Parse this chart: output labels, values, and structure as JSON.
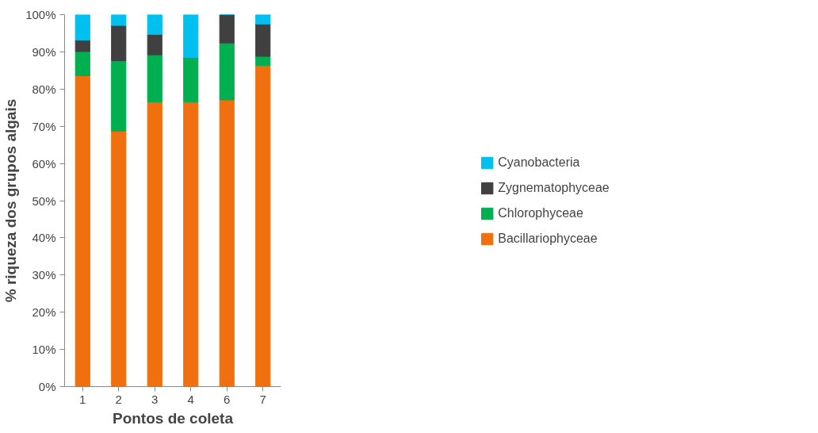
{
  "chart_data": {
    "type": "bar",
    "stacked": true,
    "xlabel": "Pontos de coleta",
    "ylabel": "% riqueza dos grupos algais",
    "categories": [
      "1",
      "2",
      "3",
      "4",
      "6",
      "7"
    ],
    "series": [
      {
        "name": "Bacillariophyceae",
        "color": "#f07010",
        "values": [
          83.6,
          68.7,
          76.5,
          76.5,
          77.1,
          86.3
        ]
      },
      {
        "name": "Chlorophyceae",
        "color": "#00b050",
        "values": [
          6.5,
          18.9,
          12.7,
          11.9,
          15.3,
          2.5
        ]
      },
      {
        "name": "Zygnematophyceae",
        "color": "#404040",
        "values": [
          3.1,
          9.5,
          5.5,
          0,
          7.6,
          8.7
        ]
      },
      {
        "name": "Cyanobacteria",
        "color": "#00c0f0",
        "values": [
          6.8,
          2.9,
          5.3,
          11.6,
          0,
          2.5
        ]
      }
    ],
    "ylim": [
      0,
      100
    ],
    "yticks": [
      {
        "value": 0,
        "label": "0%"
      },
      {
        "value": 10,
        "label": "10%"
      },
      {
        "value": 20,
        "label": "20%"
      },
      {
        "value": 30,
        "label": "30%"
      },
      {
        "value": 40,
        "label": "40%"
      },
      {
        "value": 50,
        "label": "50%"
      },
      {
        "value": 60,
        "label": "60%"
      },
      {
        "value": 70,
        "label": "70%"
      },
      {
        "value": 80,
        "label": "80%"
      },
      {
        "value": 90,
        "label": "90%"
      },
      {
        "value": 100,
        "label": "100%"
      }
    ],
    "grid": false,
    "legend": "right"
  }
}
